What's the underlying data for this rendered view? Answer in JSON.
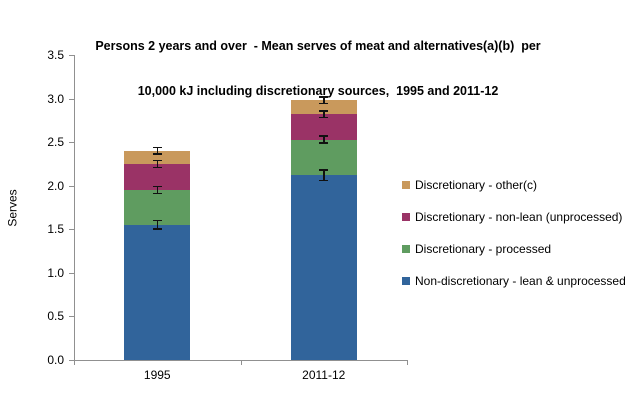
{
  "title": {
    "line1": "Persons 2 years and over  - Mean serves of meat and alternatives(a)(b)  per",
    "line2": "10,000 kJ including discretionary sources,  1995 and 2011-12"
  },
  "chart_data": {
    "type": "bar",
    "subtype": "stacked-column",
    "title": "Persons 2 years and over - Mean serves of meat and alternatives(a)(b) per 10,000 kJ including discretionary sources, 1995 and 2011-12",
    "categories": [
      "1995",
      "2011-12"
    ],
    "series": [
      {
        "name": "Non-discretionary - lean & unprocessed",
        "color": "#31649B",
        "values": [
          1.55,
          2.12
        ]
      },
      {
        "name": "Discretionary - processed",
        "color": "#5F9C60",
        "values": [
          0.4,
          0.41
        ]
      },
      {
        "name": "Discretionary - non-lean (unprocessed)",
        "color": "#9A3366",
        "values": [
          0.3,
          0.29
        ]
      },
      {
        "name": "Discretionary - other(c)",
        "color": "#C9995C",
        "values": [
          0.15,
          0.16
        ]
      }
    ],
    "totals": [
      2.4,
      2.98
    ],
    "cumulative_tops": [
      [
        1.55,
        1.95,
        2.25,
        2.4
      ],
      [
        2.12,
        2.53,
        2.82,
        2.98
      ]
    ],
    "error_bars_plus_minus": [
      [
        0.04,
        0.03,
        0.03,
        0.03
      ],
      [
        0.05,
        0.03,
        0.03,
        0.03
      ]
    ],
    "xlabel": "",
    "ylabel": "Serves",
    "ylim": [
      0.0,
      3.5
    ],
    "ytick_step": 0.5,
    "yticks": [
      "0.0",
      "0.5",
      "1.0",
      "1.5",
      "2.0",
      "2.5",
      "3.0",
      "3.5"
    ],
    "grid": false,
    "legend_position": "right",
    "legend_order_top_to_bottom": [
      "Discretionary - other(c)",
      "Discretionary - non-lean (unprocessed)",
      "Discretionary - processed",
      "Non-discretionary - lean & unprocessed"
    ],
    "axis_color": "#909090",
    "error_bar_color": "#111111",
    "text_color": "#000000"
  }
}
